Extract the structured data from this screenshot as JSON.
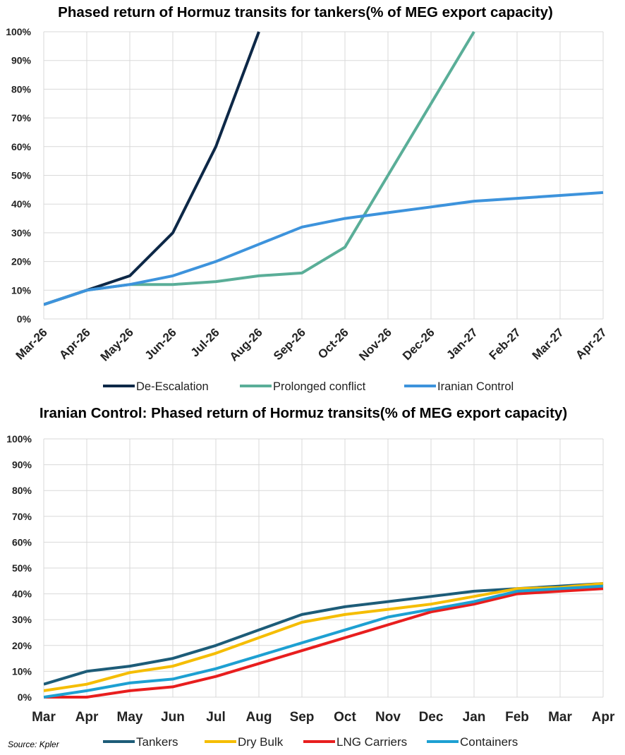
{
  "source": "Source: Kpler",
  "chart_data": [
    {
      "type": "line",
      "title": "Phased return of Hormuz transits for tankers(% of MEG export capacity)",
      "x": [
        "Mar-26",
        "Apr-26",
        "May-26",
        "Jun-26",
        "Jul-26",
        "Aug-26",
        "Sep-26",
        "Oct-26",
        "Nov-26",
        "Dec-26",
        "Jan-27",
        "Feb-27",
        "Mar-27",
        "Apr-27"
      ],
      "ylim": [
        0,
        100
      ],
      "yticks": [
        "0%",
        "10%",
        "20%",
        "30%",
        "40%",
        "50%",
        "60%",
        "70%",
        "80%",
        "90%",
        "100%"
      ],
      "grid": true,
      "legend_position": "bottom",
      "series": [
        {
          "name": "De-Escalation",
          "color": "#0d2847",
          "values": [
            5,
            10,
            15,
            30,
            60,
            100,
            null,
            null,
            null,
            null,
            null,
            null,
            null,
            null
          ]
        },
        {
          "name": "Prolonged conflict",
          "color": "#5aae98",
          "values": [
            5,
            10,
            12,
            12,
            13,
            15,
            16,
            25,
            50,
            75,
            100,
            null,
            null,
            null
          ]
        },
        {
          "name": "Iranian Control",
          "color": "#3d93dc",
          "values": [
            5,
            10,
            12,
            15,
            20,
            26,
            32,
            35,
            37,
            39,
            41,
            42,
            43,
            44
          ]
        }
      ]
    },
    {
      "type": "line",
      "title": "Iranian Control: Phased return of Hormuz transits(% of MEG export capacity)",
      "x": [
        "Mar",
        "Apr",
        "May",
        "Jun",
        "Jul",
        "Aug",
        "Sep",
        "Oct",
        "Nov",
        "Dec",
        "Jan",
        "Feb",
        "Mar",
        "Apr"
      ],
      "ylim": [
        0,
        100
      ],
      "yticks": [
        "0%",
        "10%",
        "20%",
        "30%",
        "40%",
        "50%",
        "60%",
        "70%",
        "80%",
        "90%",
        "100%"
      ],
      "grid": true,
      "legend_position": "bottom",
      "series": [
        {
          "name": "Tankers",
          "color": "#1d5c78",
          "values": [
            5,
            10,
            12,
            15,
            20,
            26,
            32,
            35,
            37,
            39,
            41,
            42,
            43,
            44
          ]
        },
        {
          "name": "Dry Bulk",
          "color": "#f5bd00",
          "values": [
            2.5,
            5,
            9.5,
            12,
            17,
            23,
            29,
            32,
            34,
            36,
            39,
            42,
            42.5,
            44
          ]
        },
        {
          "name": "LNG Carriers",
          "color": "#e81e1e",
          "values": [
            0,
            0,
            2.5,
            4,
            8,
            13,
            18,
            23,
            28,
            33,
            36,
            40,
            41,
            42
          ]
        },
        {
          "name": "Containers",
          "color": "#1da0d2",
          "values": [
            0,
            2.5,
            5.5,
            7,
            11,
            16,
            21,
            26,
            31,
            34,
            37,
            41,
            42,
            43
          ]
        }
      ]
    }
  ]
}
